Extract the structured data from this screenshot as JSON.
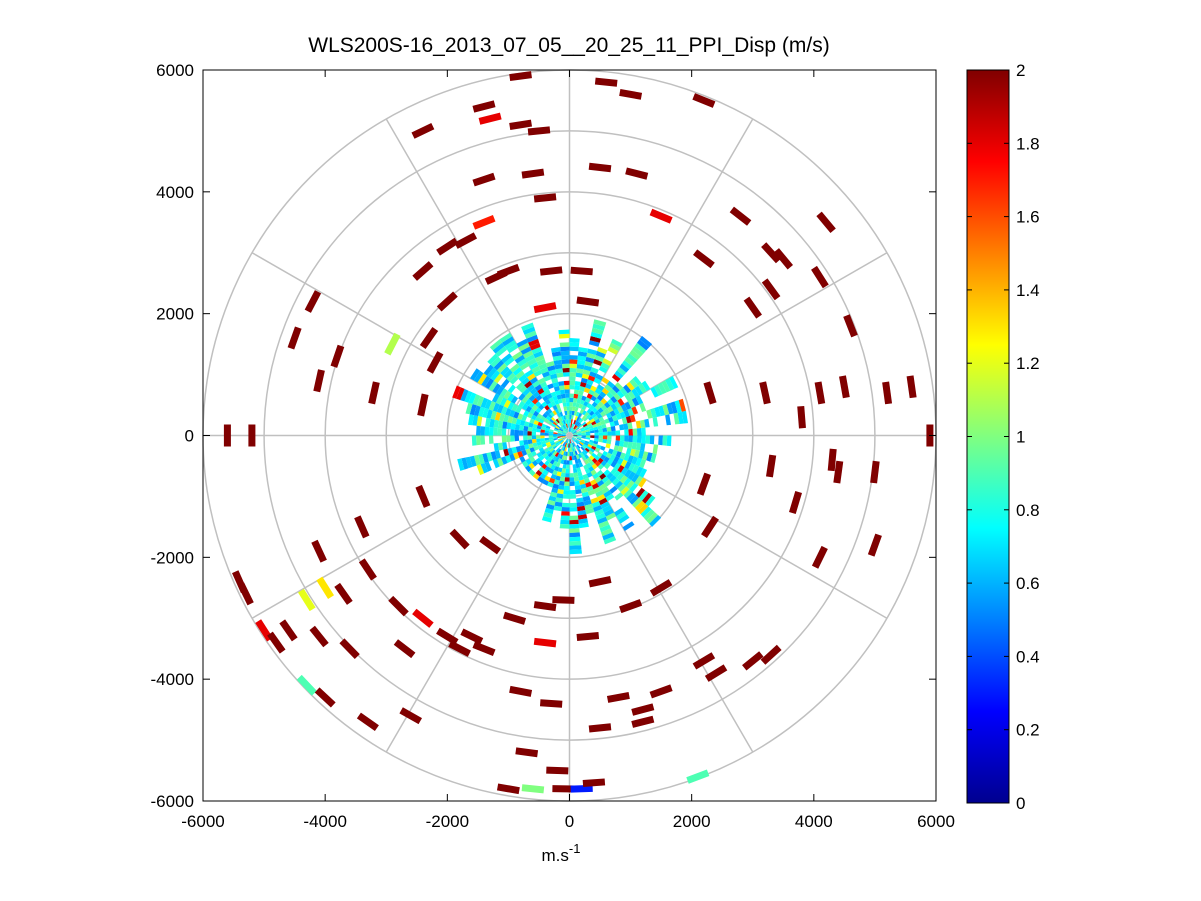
{
  "chart_data": {
    "type": "heatmap",
    "subtype": "polar-ppi-scan",
    "title": "WLS200S-16_2013_07_05__20_25_11_PPI_Disp (m/s)",
    "xlabel": "m.s",
    "xlabel_superscript": "-1",
    "ylabel": "",
    "xlim": [
      -6000,
      6000
    ],
    "ylim": [
      -6000,
      6000
    ],
    "xticks": [
      -6000,
      -4000,
      -2000,
      0,
      2000,
      4000,
      6000
    ],
    "yticks": [
      -6000,
      -4000,
      -2000,
      0,
      2000,
      4000,
      6000
    ],
    "xtick_labels": [
      "-6000",
      "-4000",
      "-2000",
      "0",
      "2000",
      "4000",
      "6000"
    ],
    "ytick_labels": [
      "-6000",
      "-4000",
      "-2000",
      "0",
      "2000",
      "4000",
      "6000"
    ],
    "polar_grid": {
      "ring_radii": [
        1000,
        2000,
        3000,
        4000,
        5000,
        6000
      ],
      "spoke_angles_deg": [
        0,
        30,
        60,
        90,
        120,
        150,
        180,
        210,
        240,
        270,
        300,
        330
      ]
    },
    "colorbar": {
      "colormap": "jet",
      "range": [
        0,
        2
      ],
      "ticks": [
        0,
        0.2,
        0.4,
        0.6,
        0.8,
        1,
        1.2,
        1.4,
        1.6,
        1.8,
        2
      ],
      "tick_labels": [
        "0",
        "0.2",
        "0.4",
        "0.6",
        "0.8",
        "1",
        "1.2",
        "1.4",
        "1.6",
        "1.8",
        "2"
      ],
      "colors": [
        "#00008f",
        "#0000ff",
        "#0080ff",
        "#00ffff",
        "#80ff80",
        "#ffff00",
        "#ff8000",
        "#ff0000",
        "#800000"
      ]
    },
    "dense_core": {
      "description_value_range": [
        0.5,
        1.0
      ],
      "max_range_m": 2000
    },
    "cells": [
      {
        "x": -800,
        "y": 5900,
        "v": 2
      },
      {
        "x": -1400,
        "y": 5400,
        "v": 2
      },
      {
        "x": -1300,
        "y": 5200,
        "v": 1.8
      },
      {
        "x": -800,
        "y": 5100,
        "v": 2
      },
      {
        "x": -500,
        "y": 5000,
        "v": 2
      },
      {
        "x": -2400,
        "y": 5000,
        "v": 2
      },
      {
        "x": 600,
        "y": 5800,
        "v": 2
      },
      {
        "x": 1000,
        "y": 5600,
        "v": 2
      },
      {
        "x": 2200,
        "y": 5500,
        "v": 2
      },
      {
        "x": 500,
        "y": 4400,
        "v": 2
      },
      {
        "x": 1100,
        "y": 4300,
        "v": 2
      },
      {
        "x": -1400,
        "y": 4200,
        "v": 2
      },
      {
        "x": -600,
        "y": 4300,
        "v": 2
      },
      {
        "x": -400,
        "y": 3900,
        "v": 2
      },
      {
        "x": 1500,
        "y": 3600,
        "v": 1.8
      },
      {
        "x": 2800,
        "y": 3600,
        "v": 2
      },
      {
        "x": 4200,
        "y": 3500,
        "v": 2
      },
      {
        "x": -1400,
        "y": 3500,
        "v": 1.7
      },
      {
        "x": -1700,
        "y": 3200,
        "v": 2
      },
      {
        "x": -2000,
        "y": 3100,
        "v": 2
      },
      {
        "x": 3300,
        "y": 3000,
        "v": 2
      },
      {
        "x": 3500,
        "y": 2900,
        "v": 2
      },
      {
        "x": 2200,
        "y": 2900,
        "v": 2
      },
      {
        "x": -2400,
        "y": 2700,
        "v": 2
      },
      {
        "x": -1000,
        "y": 2700,
        "v": 2
      },
      {
        "x": -1200,
        "y": 2600,
        "v": 2
      },
      {
        "x": -300,
        "y": 2700,
        "v": 2
      },
      {
        "x": 200,
        "y": 2700,
        "v": 2
      },
      {
        "x": 4100,
        "y": 2600,
        "v": 2
      },
      {
        "x": 3300,
        "y": 2400,
        "v": 2
      },
      {
        "x": -2000,
        "y": 2200,
        "v": 2
      },
      {
        "x": -4200,
        "y": 2200,
        "v": 2
      },
      {
        "x": -400,
        "y": 2100,
        "v": 1.8
      },
      {
        "x": 300,
        "y": 2200,
        "v": 2
      },
      {
        "x": 3000,
        "y": 2100,
        "v": 2
      },
      {
        "x": -2300,
        "y": 1600,
        "v": 2
      },
      {
        "x": -4500,
        "y": 1600,
        "v": 2
      },
      {
        "x": -2900,
        "y": 1500,
        "v": 1.1
      },
      {
        "x": 4600,
        "y": 1800,
        "v": 2
      },
      {
        "x": -3800,
        "y": 1300,
        "v": 2
      },
      {
        "x": -2200,
        "y": 1200,
        "v": 2
      },
      {
        "x": -3200,
        "y": 700,
        "v": 2
      },
      {
        "x": -4100,
        "y": 900,
        "v": 2
      },
      {
        "x": -2400,
        "y": 500,
        "v": 2
      },
      {
        "x": 4100,
        "y": 700,
        "v": 2
      },
      {
        "x": 4500,
        "y": 800,
        "v": 2
      },
      {
        "x": 5200,
        "y": 700,
        "v": 2
      },
      {
        "x": 5600,
        "y": 800,
        "v": 2
      },
      {
        "x": 3200,
        "y": 700,
        "v": 2
      },
      {
        "x": 2300,
        "y": 700,
        "v": 2
      },
      {
        "x": 3800,
        "y": 300,
        "v": 2
      },
      {
        "x": -5600,
        "y": 0,
        "v": 2
      },
      {
        "x": -5200,
        "y": 0,
        "v": 2
      },
      {
        "x": 5900,
        "y": 0,
        "v": 2
      },
      {
        "x": 4300,
        "y": -400,
        "v": 2
      },
      {
        "x": 3300,
        "y": -500,
        "v": 2
      },
      {
        "x": 4400,
        "y": -600,
        "v": 2
      },
      {
        "x": 5000,
        "y": -600,
        "v": 2
      },
      {
        "x": 2200,
        "y": -800,
        "v": 2
      },
      {
        "x": 3700,
        "y": -1100,
        "v": 2
      },
      {
        "x": 2300,
        "y": -1500,
        "v": 2
      },
      {
        "x": 5000,
        "y": -1800,
        "v": 2
      },
      {
        "x": 4100,
        "y": -2000,
        "v": 2
      },
      {
        "x": -2400,
        "y": -1000,
        "v": 2
      },
      {
        "x": -3400,
        "y": -1500,
        "v": 2
      },
      {
        "x": -4100,
        "y": -1900,
        "v": 2
      },
      {
        "x": -1800,
        "y": -1700,
        "v": 2
      },
      {
        "x": -1300,
        "y": -1800,
        "v": 2
      },
      {
        "x": -3300,
        "y": -2200,
        "v": 2
      },
      {
        "x": -5400,
        "y": -2400,
        "v": 2
      },
      {
        "x": -5300,
        "y": -2600,
        "v": 2
      },
      {
        "x": -4300,
        "y": -2700,
        "v": 1.2
      },
      {
        "x": -4000,
        "y": -2500,
        "v": 1.3
      },
      {
        "x": -3700,
        "y": -2600,
        "v": 2
      },
      {
        "x": -2800,
        "y": -2800,
        "v": 2
      },
      {
        "x": -2400,
        "y": -3000,
        "v": 1.8
      },
      {
        "x": -2000,
        "y": -3300,
        "v": 2
      },
      {
        "x": -1600,
        "y": -3300,
        "v": 2
      },
      {
        "x": -900,
        "y": -3000,
        "v": 2
      },
      {
        "x": -400,
        "y": -2800,
        "v": 2
      },
      {
        "x": -100,
        "y": -2700,
        "v": 2
      },
      {
        "x": 500,
        "y": -2400,
        "v": 2
      },
      {
        "x": 1000,
        "y": -2800,
        "v": 2
      },
      {
        "x": 1500,
        "y": -2500,
        "v": 2
      },
      {
        "x": -5000,
        "y": -3200,
        "v": 1.8
      },
      {
        "x": -4800,
        "y": -3400,
        "v": 2
      },
      {
        "x": -4600,
        "y": -3200,
        "v": 2
      },
      {
        "x": -4100,
        "y": -3300,
        "v": 2
      },
      {
        "x": -3600,
        "y": -3500,
        "v": 2
      },
      {
        "x": -2700,
        "y": -3500,
        "v": 2
      },
      {
        "x": -1800,
        "y": -3500,
        "v": 2
      },
      {
        "x": -1400,
        "y": -3500,
        "v": 2
      },
      {
        "x": -400,
        "y": -3400,
        "v": 1.8
      },
      {
        "x": 300,
        "y": -3300,
        "v": 2
      },
      {
        "x": 2200,
        "y": -3700,
        "v": 2
      },
      {
        "x": 3000,
        "y": -3700,
        "v": 2
      },
      {
        "x": 3300,
        "y": -3600,
        "v": 2
      },
      {
        "x": -4300,
        "y": -4100,
        "v": 0.9
      },
      {
        "x": -4000,
        "y": -4300,
        "v": 2
      },
      {
        "x": -3300,
        "y": -4700,
        "v": 2
      },
      {
        "x": -2600,
        "y": -4600,
        "v": 2
      },
      {
        "x": -800,
        "y": -4200,
        "v": 2
      },
      {
        "x": -300,
        "y": -4400,
        "v": 2
      },
      {
        "x": 800,
        "y": -4300,
        "v": 2
      },
      {
        "x": 1200,
        "y": -4500,
        "v": 2
      },
      {
        "x": 1500,
        "y": -4200,
        "v": 2
      },
      {
        "x": 2400,
        "y": -3900,
        "v": 2
      },
      {
        "x": -700,
        "y": -5200,
        "v": 2
      },
      {
        "x": 500,
        "y": -4800,
        "v": 2
      },
      {
        "x": 1200,
        "y": -4700,
        "v": 2
      },
      {
        "x": -600,
        "y": -5800,
        "v": 1.0
      },
      {
        "x": -1000,
        "y": -5800,
        "v": 2
      },
      {
        "x": -100,
        "y": -5800,
        "v": 2
      },
      {
        "x": 200,
        "y": -5800,
        "v": 0.3
      },
      {
        "x": 400,
        "y": -5700,
        "v": 2
      },
      {
        "x": -200,
        "y": -5500,
        "v": 2
      },
      {
        "x": 2100,
        "y": -5600,
        "v": 0.9
      }
    ]
  }
}
